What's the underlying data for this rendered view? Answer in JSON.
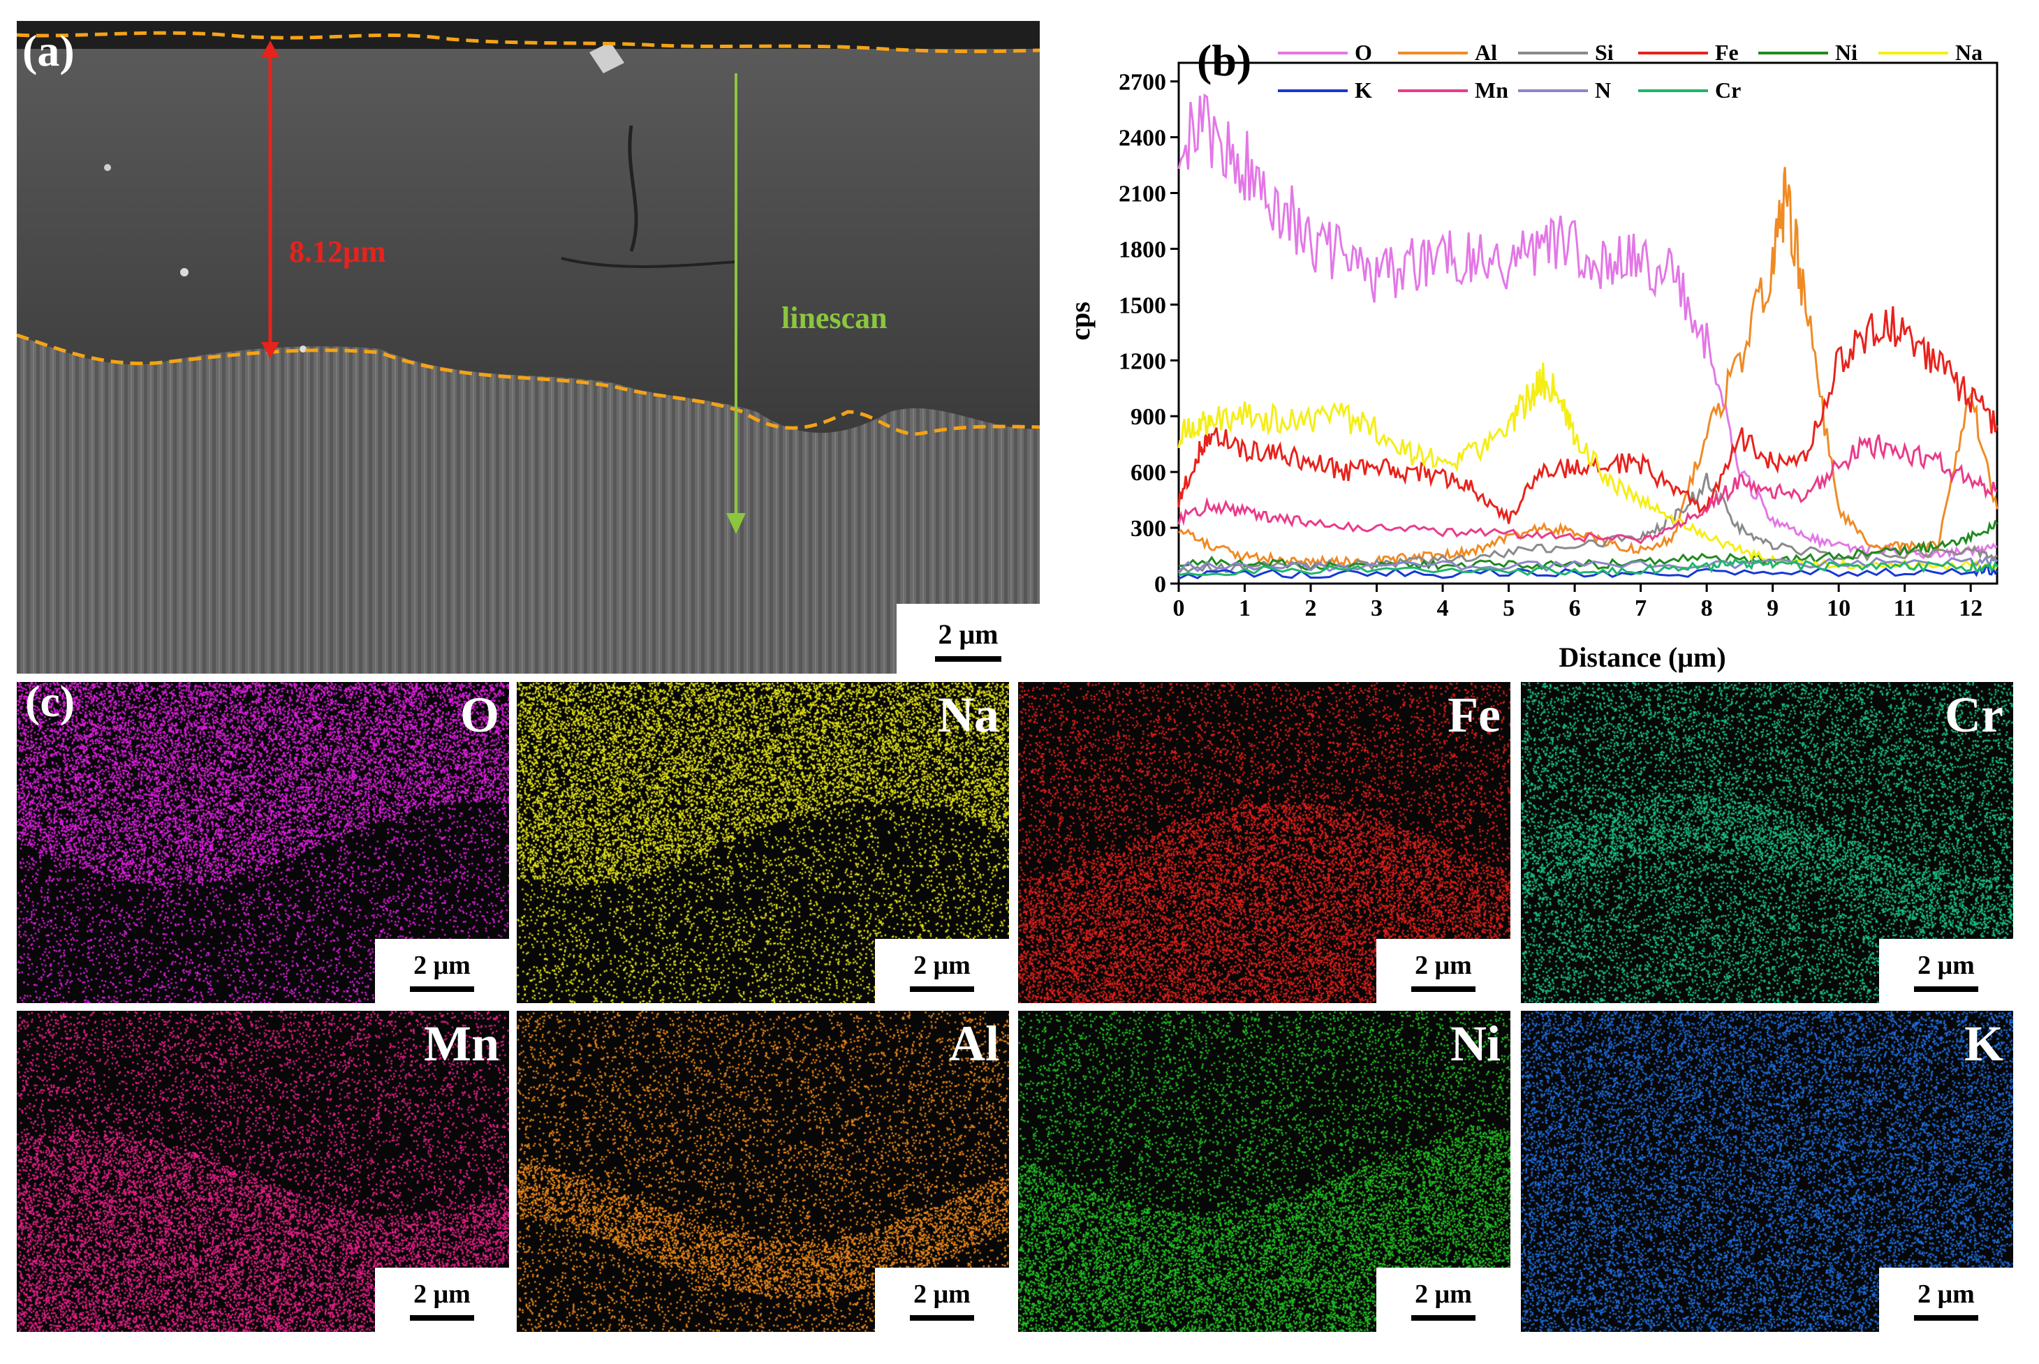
{
  "panel_a": {
    "label": "(a)",
    "thickness_label": "8.12μm",
    "linescan_label": "linescan",
    "scale_bar": "2 μm",
    "colors": {
      "boundary": "#f5a316",
      "thickness_arrow": "#e8221c",
      "linescan_arrow": "#8cc63f"
    }
  },
  "panel_b": {
    "label": "(b)",
    "chart_data": {
      "type": "line",
      "title": "",
      "xlabel": "Distance (μm)",
      "ylabel": "cps",
      "xlim": [
        0,
        12.4
      ],
      "ylim": [
        0,
        2800
      ],
      "xticks": [
        0,
        1,
        2,
        3,
        4,
        5,
        6,
        7,
        8,
        9,
        10,
        11,
        12
      ],
      "yticks": [
        0,
        300,
        600,
        900,
        1200,
        1500,
        1800,
        2100,
        2400,
        2700
      ],
      "legend_position": "top",
      "series": [
        {
          "name": "O",
          "color": "#e377e6",
          "x": [
            0,
            0.5,
            1,
            1.5,
            2,
            2.5,
            3,
            3.5,
            4,
            4.5,
            5,
            5.5,
            6,
            6.5,
            7,
            7.5,
            8,
            8.5,
            9,
            9.5,
            10,
            10.5,
            11,
            11.5,
            12,
            12.4
          ],
          "values": [
            2450,
            2400,
            2250,
            2050,
            1850,
            1750,
            1650,
            1700,
            1800,
            1750,
            1700,
            1850,
            1800,
            1700,
            1750,
            1650,
            1300,
            600,
            350,
            250,
            200,
            180,
            180,
            150,
            180,
            200
          ]
        },
        {
          "name": "Al",
          "color": "#f08a24",
          "x": [
            0,
            0.5,
            1,
            1.5,
            2,
            2.5,
            3,
            3.5,
            4,
            4.5,
            5,
            5.5,
            6,
            6.5,
            7,
            7.5,
            8,
            8.5,
            9,
            9.2,
            9.5,
            10,
            10.5,
            11,
            11.5,
            12,
            12.4
          ],
          "values": [
            300,
            200,
            150,
            130,
            120,
            120,
            120,
            140,
            150,
            180,
            250,
            300,
            280,
            220,
            180,
            250,
            800,
            1200,
            1700,
            2100,
            1500,
            400,
            200,
            200,
            200,
            1000,
            400
          ]
        },
        {
          "name": "Si",
          "color": "#8a8a8a",
          "x": [
            0,
            1,
            2,
            3,
            4,
            5,
            6,
            7,
            7.5,
            8,
            8.5,
            9,
            10,
            11,
            12,
            12.4
          ],
          "values": [
            80,
            90,
            100,
            100,
            130,
            170,
            200,
            250,
            350,
            550,
            300,
            200,
            150,
            150,
            180,
            150
          ]
        },
        {
          "name": "Fe",
          "color": "#e8221c",
          "x": [
            0,
            0.3,
            0.5,
            1,
            1.5,
            2,
            2.5,
            3,
            3.5,
            4,
            4.5,
            5,
            5.5,
            6,
            6.5,
            7,
            7.5,
            8,
            8.5,
            9,
            9.5,
            10,
            10.5,
            11,
            11.5,
            12,
            12.4
          ],
          "values": [
            450,
            700,
            800,
            720,
            700,
            650,
            600,
            620,
            600,
            580,
            500,
            350,
            600,
            620,
            650,
            640,
            500,
            400,
            800,
            650,
            700,
            1200,
            1350,
            1380,
            1200,
            1000,
            850
          ]
        },
        {
          "name": "Ni",
          "color": "#1f8a1f",
          "x": [
            0,
            1,
            2,
            3,
            4,
            5,
            6,
            7,
            8,
            9,
            10,
            11,
            11.5,
            12,
            12.4
          ],
          "values": [
            120,
            110,
            100,
            100,
            100,
            100,
            100,
            110,
            150,
            120,
            150,
            180,
            200,
            250,
            320
          ]
        },
        {
          "name": "Na",
          "color": "#f5ee15",
          "x": [
            0,
            0.3,
            0.5,
            1,
            1.5,
            2,
            2.5,
            3,
            3.5,
            4,
            4.5,
            5,
            5.3,
            5.5,
            5.8,
            6,
            6.5,
            7,
            7.5,
            8,
            8.5,
            9,
            10,
            11,
            12,
            12.4
          ],
          "values": [
            800,
            850,
            880,
            900,
            880,
            860,
            900,
            820,
            700,
            650,
            700,
            850,
            1000,
            1100,
            1000,
            800,
            550,
            450,
            350,
            250,
            180,
            120,
            100,
            100,
            100,
            100
          ]
        },
        {
          "name": "K",
          "color": "#1638d6",
          "x": [
            0,
            2,
            4,
            6,
            8,
            10,
            12,
            12.4
          ],
          "values": [
            50,
            50,
            55,
            55,
            60,
            60,
            70,
            70
          ]
        },
        {
          "name": "Mn",
          "color": "#ea3b8a",
          "x": [
            0,
            0.5,
            1,
            1.5,
            2,
            3,
            4,
            5,
            6,
            7,
            7.5,
            8,
            8.5,
            9,
            9.5,
            10,
            10.5,
            11,
            11.5,
            12,
            12.4
          ],
          "values": [
            350,
            420,
            380,
            350,
            330,
            300,
            280,
            270,
            250,
            230,
            300,
            400,
            550,
            500,
            450,
            650,
            750,
            700,
            650,
            550,
            500
          ]
        },
        {
          "name": "N",
          "color": "#8b86c8",
          "x": [
            0,
            2,
            4,
            6,
            8,
            10,
            12,
            12.4
          ],
          "values": [
            90,
            90,
            95,
            95,
            100,
            110,
            120,
            120
          ]
        },
        {
          "name": "Cr",
          "color": "#1fb56a",
          "x": [
            0,
            2,
            4,
            6,
            7,
            8,
            8.5,
            9,
            10,
            11,
            12,
            12.4
          ],
          "values": [
            70,
            70,
            70,
            70,
            75,
            90,
            110,
            100,
            90,
            90,
            90,
            90
          ]
        }
      ]
    }
  },
  "panel_c": {
    "label": "(c)",
    "maps": [
      {
        "element": "O",
        "color": "#e020e0",
        "scale_bar": "2 μm"
      },
      {
        "element": "Na",
        "color": "#e3e316",
        "scale_bar": "2 μm"
      },
      {
        "element": "Fe",
        "color": "#e5201a",
        "scale_bar": "2 μm"
      },
      {
        "element": "Cr",
        "color": "#1ac383",
        "scale_bar": "2 μm"
      },
      {
        "element": "Mn",
        "color": "#e8208a",
        "scale_bar": "2 μm"
      },
      {
        "element": "Al",
        "color": "#f08a1a",
        "scale_bar": "2 μm"
      },
      {
        "element": "Ni",
        "color": "#22c322",
        "scale_bar": "2 μm"
      },
      {
        "element": "K",
        "color": "#1f6fe0",
        "scale_bar": "2 μm"
      }
    ]
  }
}
